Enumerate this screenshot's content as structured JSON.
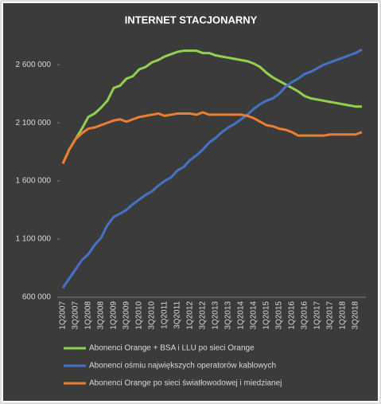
{
  "chart_data": {
    "type": "line",
    "title": "INTERNET STACJONARNY",
    "categories": [
      "1Q2007",
      null,
      "3Q2007",
      null,
      "1Q2008",
      null,
      "3Q2008",
      null,
      "1Q2009",
      null,
      "3Q2009",
      null,
      "1Q2010",
      null,
      "3Q2010",
      null,
      "1Q2011",
      null,
      "3Q2011",
      null,
      "1Q2012",
      null,
      "3Q2012",
      null,
      "1Q2013",
      null,
      "3Q2013",
      null,
      "1Q2014",
      null,
      "3Q2014",
      null,
      "1Q2015",
      null,
      "3Q2015",
      null,
      "1Q2016",
      null,
      "3Q2016",
      null,
      "1Q2017",
      null,
      "3Q2017",
      null,
      "1Q2018",
      null,
      "3Q2018",
      null
    ],
    "series": [
      {
        "name": "Abonenci Orange + BSA i LLU po sieci Orange",
        "color": "#92d050",
        "values": [
          1750000,
          1870000,
          1960000,
          2050000,
          2150000,
          2180000,
          2230000,
          2290000,
          2400000,
          2420000,
          2480000,
          2500000,
          2560000,
          2580000,
          2620000,
          2640000,
          2670000,
          2690000,
          2710000,
          2720000,
          2720000,
          2720000,
          2700000,
          2700000,
          2680000,
          2670000,
          2660000,
          2650000,
          2640000,
          2630000,
          2610000,
          2580000,
          2530000,
          2490000,
          2460000,
          2430000,
          2400000,
          2370000,
          2330000,
          2310000,
          2300000,
          2290000,
          2280000,
          2270000,
          2260000,
          2250000,
          2240000,
          2240000
        ]
      },
      {
        "name": "Abonenci ośmiu największych operatorów kablowych",
        "color": "#4472c4",
        "values": [
          680000,
          760000,
          840000,
          920000,
          970000,
          1050000,
          1110000,
          1220000,
          1290000,
          1320000,
          1350000,
          1400000,
          1440000,
          1480000,
          1510000,
          1560000,
          1600000,
          1630000,
          1690000,
          1720000,
          1780000,
          1820000,
          1870000,
          1930000,
          1970000,
          2020000,
          2060000,
          2090000,
          2130000,
          2170000,
          2220000,
          2260000,
          2290000,
          2310000,
          2350000,
          2410000,
          2450000,
          2480000,
          2520000,
          2540000,
          2570000,
          2600000,
          2620000,
          2640000,
          2660000,
          2680000,
          2700000,
          2730000
        ]
      },
      {
        "name": "Abonenci Orange po sieci światłowodowej  i miedzianej",
        "color": "#ed7d31",
        "values": [
          1750000,
          1870000,
          1960000,
          2010000,
          2050000,
          2060000,
          2080000,
          2100000,
          2120000,
          2130000,
          2110000,
          2130000,
          2150000,
          2160000,
          2170000,
          2180000,
          2160000,
          2170000,
          2180000,
          2180000,
          2180000,
          2170000,
          2190000,
          2170000,
          2170000,
          2170000,
          2170000,
          2170000,
          2170000,
          2160000,
          2140000,
          2110000,
          2080000,
          2070000,
          2050000,
          2040000,
          2020000,
          1990000,
          1990000,
          1990000,
          1990000,
          1990000,
          2000000,
          2000000,
          2000000,
          2000000,
          2000000,
          2020000
        ]
      }
    ],
    "ylim": [
      600000,
      2800000
    ],
    "yticks": [
      {
        "value": 600000,
        "label": "600 000"
      },
      {
        "value": 1100000,
        "label": "1 100 000"
      },
      {
        "value": 1600000,
        "label": "1 600 000"
      },
      {
        "value": 2100000,
        "label": "2 100 000"
      },
      {
        "value": 2600000,
        "label": "2 600 000"
      }
    ],
    "grid": false
  }
}
